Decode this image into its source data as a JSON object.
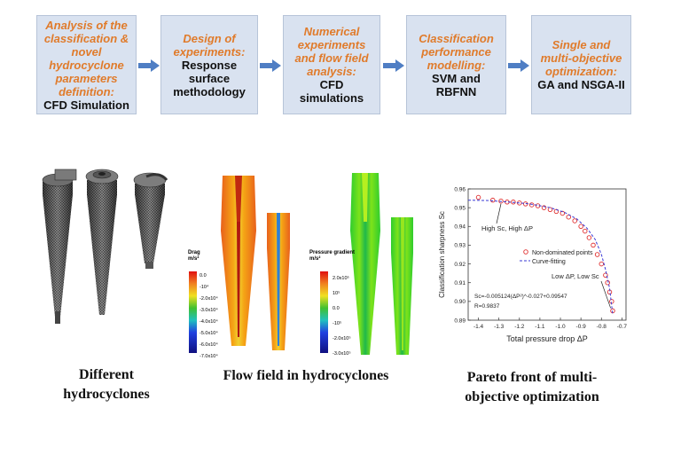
{
  "steps": [
    {
      "title": "Analysis of the\nclassification &\nnovel\nhydrocyclone\nparameters\ndefinition:",
      "subtitle": "CFD Simulation"
    },
    {
      "title": "Design of\nexperiments:",
      "subtitle": "Response\nsurface\nmethodology"
    },
    {
      "title": "Numerical\nexperiments\nand flow field\nanalysis:",
      "subtitle": "CFD\nsimulations"
    },
    {
      "title": "Classification\nperformance\nmodelling:",
      "subtitle": "SVM and\nRBFNN"
    },
    {
      "title": "Single and\nmulti-objective\noptimization:",
      "subtitle": "GA and NSGA-II"
    }
  ],
  "captions": {
    "geometries": "Different\nhydrocyclones",
    "flow": "Flow field in hydrocyclones",
    "pareto": "Pareto front of multi-\nobjective optimization"
  },
  "flow_legends": {
    "drag": {
      "title": "Drag\nm/s²",
      "ticks": [
        "0.0",
        "-10⁴",
        "-2.0x10⁴",
        "-3.0x10⁴",
        "-4.0x10⁴",
        "-5.0x10⁴",
        "-6.0x10⁴",
        "-7.0x10⁴"
      ]
    },
    "pressure": {
      "title": "Pressure gradient\nm/s²",
      "ticks": [
        "2.0x10⁵",
        "10⁵",
        "0.0",
        "-10⁵",
        "-2.0x10⁵",
        "-3.0x10⁵"
      ]
    }
  },
  "chart_data": {
    "type": "scatter",
    "xlabel": "Total pressure drop ΔP",
    "ylabel": "Classification sharpness Sc",
    "xlim": [
      -1.45,
      -0.68
    ],
    "ylim": [
      0.89,
      0.96
    ],
    "xticks": [
      "-1.4",
      "-1.3",
      "-1.2",
      "-1.1",
      "-1.0",
      "-0.9",
      "-0.8",
      "-0.7"
    ],
    "yticks": [
      "0.89",
      "0.90",
      "0.91",
      "0.92",
      "0.93",
      "0.94",
      "0.95",
      "0.96"
    ],
    "legend": {
      "position": "right",
      "entries": [
        "Non-dominated points",
        "Curve-fitting"
      ]
    },
    "annotations": [
      "High Sc, High ΔP",
      "Low ΔP, Low Sc",
      "Sc=-0.005124(ΔP²)^-0.027+0.09547",
      "R=0.9837"
    ],
    "series": [
      {
        "name": "Non-dominated points",
        "style": "circle",
        "color": "#e03030",
        "x": [
          -1.4,
          -1.33,
          -1.29,
          -1.26,
          -1.23,
          -1.2,
          -1.17,
          -1.14,
          -1.11,
          -1.08,
          -1.05,
          -1.02,
          -0.99,
          -0.96,
          -0.93,
          -0.9,
          -0.88,
          -0.86,
          -0.84,
          -0.82,
          -0.8,
          -0.78,
          -0.77,
          -0.76,
          -0.75,
          -0.745
        ],
        "y": [
          0.9555,
          0.954,
          0.9535,
          0.953,
          0.953,
          0.9525,
          0.952,
          0.9515,
          0.951,
          0.95,
          0.949,
          0.948,
          0.947,
          0.945,
          0.943,
          0.94,
          0.9375,
          0.934,
          0.93,
          0.925,
          0.92,
          0.914,
          0.91,
          0.905,
          0.9,
          0.895
        ]
      },
      {
        "name": "Curve-fitting",
        "style": "dashed",
        "color": "#3a3ad6",
        "x": [
          -1.45,
          -1.35,
          -1.25,
          -1.15,
          -1.05,
          -0.98,
          -0.92,
          -0.87,
          -0.83,
          -0.8,
          -0.78,
          -0.76,
          -0.745
        ],
        "y": [
          0.954,
          0.9538,
          0.953,
          0.952,
          0.95,
          0.9475,
          0.944,
          0.939,
          0.933,
          0.925,
          0.917,
          0.907,
          0.893
        ]
      }
    ],
    "colors": {
      "points": "#e03030",
      "fit": "#3a3ad6"
    }
  }
}
